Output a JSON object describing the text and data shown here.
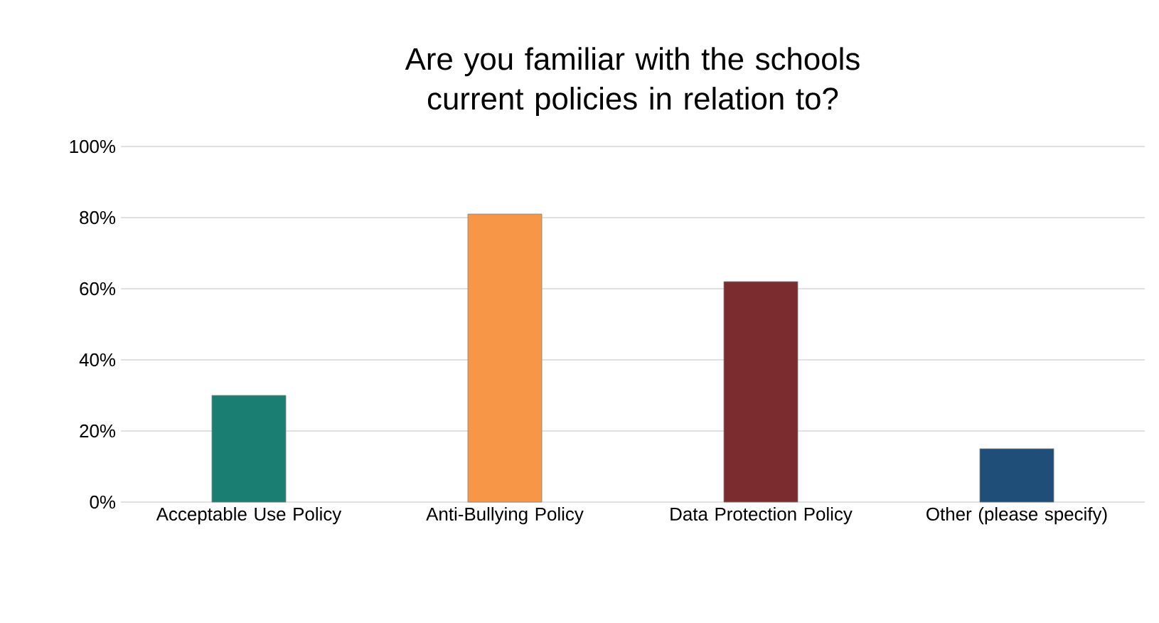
{
  "chart_data": {
    "type": "bar",
    "title": "Are you familiar with the schools current policies in relation to?",
    "categories": [
      "Acceptable Use Policy",
      "Anti-Bullying Policy",
      "Data Protection Policy",
      "Other (please specify)"
    ],
    "values": [
      30,
      81,
      62,
      15
    ],
    "colors": [
      "#1a7f72",
      "#f79646",
      "#7b2c2f",
      "#1f4e79"
    ],
    "ylim": [
      0,
      100
    ],
    "yticks": [
      {
        "value": 0,
        "label": "0%"
      },
      {
        "value": 20,
        "label": "20%"
      },
      {
        "value": 40,
        "label": "40%"
      },
      {
        "value": 60,
        "label": "60%"
      },
      {
        "value": 80,
        "label": "80%"
      },
      {
        "value": 100,
        "label": "100%"
      }
    ],
    "grid": "y"
  }
}
